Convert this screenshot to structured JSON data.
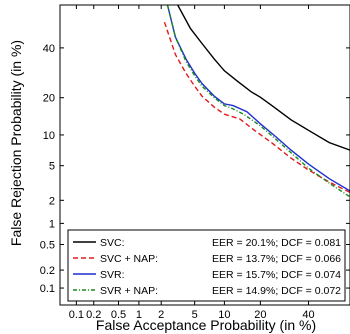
{
  "chart_data": {
    "type": "line",
    "scale": "normal-deviate (DET)",
    "title": "",
    "xlabel": "False Acceptance Probability (in %)",
    "ylabel": "False Rejection Probability (in %)",
    "xlim": [
      0.05,
      60
    ],
    "ylim": [
      0.05,
      60
    ],
    "x_ticks": [
      0.1,
      0.2,
      0.5,
      1,
      2,
      5,
      10,
      20,
      40
    ],
    "x_tick_labels": [
      "0.1",
      "0.2",
      "0.5",
      "1",
      "2",
      "5",
      "10",
      "20",
      "40"
    ],
    "y_ticks": [
      0.1,
      0.2,
      0.5,
      1,
      2,
      5,
      10,
      20,
      40
    ],
    "y_tick_labels": [
      "0.1",
      "0.2",
      "0.5",
      "1",
      "2",
      "5",
      "10",
      "20",
      "40"
    ],
    "grid": false,
    "legend_position": "bottom-right",
    "series": [
      {
        "name": "SVC:",
        "label_stats": "EER = 20.1%; DCF = 0.081",
        "color": "#000000",
        "dash": "solid",
        "x": [
          3.2,
          4.5,
          6,
          8,
          10,
          13,
          17,
          20.1,
          25,
          32,
          40,
          50,
          60
        ],
        "y": [
          60,
          49,
          42,
          35,
          30,
          26,
          22,
          20.1,
          17,
          13.5,
          11,
          8.5,
          7.2
        ]
      },
      {
        "name": "SVC + NAP:",
        "label_stats": "EER = 13.7%; DCF = 0.066",
        "color": "#e41a1c",
        "dash": "5,3",
        "x": [
          2.2,
          3,
          4,
          5,
          6,
          8,
          10,
          13.7,
          18,
          24,
          32,
          40,
          50,
          60
        ],
        "y": [
          52,
          37,
          29,
          24,
          20.5,
          17,
          15,
          13.7,
          11,
          8.5,
          6,
          4.5,
          3.3,
          2.5
        ]
      },
      {
        "name": "SVR:",
        "label_stats": "EER = 15.7%; DCF = 0.074",
        "color": "#1f2fd0",
        "dash": "solid",
        "x": [
          2.4,
          3,
          4,
          5,
          6,
          8,
          10,
          12,
          15.7,
          20,
          26,
          32,
          40,
          50,
          60
        ],
        "y": [
          60,
          45,
          35,
          29,
          25,
          20.5,
          18,
          17.5,
          15.7,
          12.5,
          9.5,
          7.2,
          5.2,
          3.6,
          2.6
        ]
      },
      {
        "name": "SVR + NAP:",
        "label_stats": "EER = 14.9%; DCF = 0.072",
        "color": "#1a8a1a",
        "dash": "4,2,1,2",
        "x": [
          2.4,
          3,
          4,
          5,
          6,
          8,
          10,
          12,
          14.9,
          20,
          26,
          32,
          40,
          50,
          60
        ],
        "y": [
          60,
          45,
          34,
          28,
          24,
          20,
          17.5,
          16.5,
          14.9,
          12,
          9,
          6.8,
          4.7,
          3.2,
          2.2
        ]
      }
    ]
  }
}
